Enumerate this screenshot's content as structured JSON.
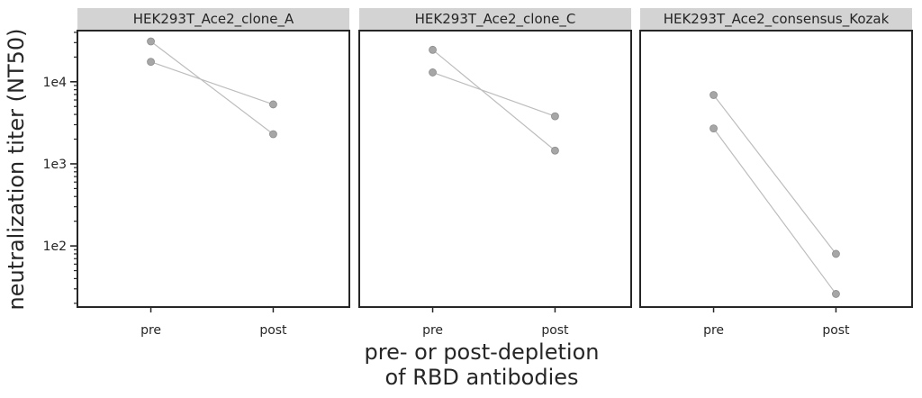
{
  "chart_data": {
    "type": "line",
    "panels": [
      {
        "title": "HEK293T_Ace2_clone_A",
        "series": [
          {
            "values": [
              31000,
              2300
            ]
          },
          {
            "values": [
              17500,
              5300
            ]
          }
        ]
      },
      {
        "title": "HEK293T_Ace2_clone_C",
        "series": [
          {
            "values": [
              24500,
              1450
            ]
          },
          {
            "values": [
              13000,
              3800
            ]
          }
        ]
      },
      {
        "title": "HEK293T_Ace2_consensus_Kozak",
        "series": [
          {
            "values": [
              6900,
              80
            ]
          },
          {
            "values": [
              2700,
              26
            ]
          }
        ]
      }
    ],
    "categories": [
      "pre",
      "post"
    ],
    "ylabel": "neutralization titer (NT50)",
    "xlabel_lines": [
      "pre- or post-depletion",
      "of RBD antibodies"
    ],
    "yscale": "log",
    "ylim": [
      18,
      42000
    ],
    "yticks": [
      {
        "value": 100,
        "label": "1e2"
      },
      {
        "value": 1000,
        "label": "1e3"
      },
      {
        "value": 10000,
        "label": "1e4"
      }
    ],
    "marker_color": "#a6a6a6",
    "line_color": "#bdbdbd",
    "strip_color": "#d3d3d3",
    "axis_color": "#262626",
    "grid": false
  }
}
